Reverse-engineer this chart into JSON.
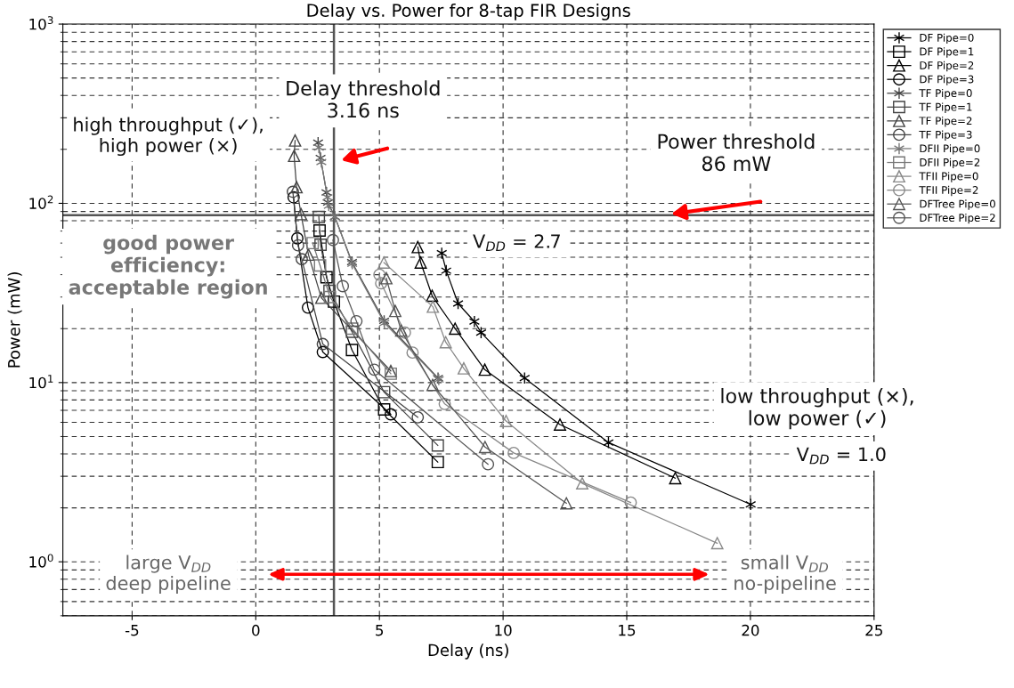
{
  "chart_data": {
    "type": "line",
    "title": "Delay vs. Power for 8-tap FIR Designs",
    "xlabel": "Delay (ns)",
    "ylabel": "Power (mW)",
    "log": "y",
    "xlim": [
      -7.8,
      25
    ],
    "xticks": [
      -5,
      0,
      5,
      10,
      15,
      20,
      25
    ],
    "ylim": [
      0.5,
      1000
    ],
    "yticks": [
      {
        "value": 1,
        "label": "10$^{0}$"
      },
      {
        "value": 10,
        "label": "10$^{1}$"
      },
      {
        "value": 100,
        "label": "10$^{2}$"
      },
      {
        "value": 1000,
        "label": "10$^{3}$"
      }
    ],
    "grid": true,
    "legend": "right",
    "line_style": "solid",
    "ref_lines": [
      {
        "axis": "x",
        "value": 3.16,
        "color": "#555555"
      },
      {
        "axis": "y",
        "value": 86,
        "color": "#555555"
      }
    ],
    "annotations": [
      {
        "text": "Delay threshold\n3.16 ns",
        "x": 3.16,
        "y": 170
      },
      {
        "text": "Power threshold\n86 mW",
        "x": 16.5,
        "y": 86
      },
      "high throughput (✓),\nhigh power (×)",
      "good power\nefficiency:\nacceptable region",
      "V$_{DD}$ = 2.7",
      "V$_{DD}$ = 1.0",
      "low throughput (×),\nlow power (✓)",
      "large V$_{DD}$\ndeep pipeline",
      "small V$_{DD}$\nno-pipeline"
    ],
    "series": [
      {
        "name": "DF Pipe=0",
        "color": "#000000",
        "marker": "cross",
        "x": [
          7.52,
          7.7,
          8.18,
          8.84,
          9.11,
          10.87,
          14.26,
          20.01
        ],
        "values": [
          52.7,
          42.1,
          27.6,
          21.9,
          19.0,
          10.6,
          4.63,
          2.09
        ]
      },
      {
        "name": "DF Pipe=1",
        "color": "#000000",
        "marker": "square",
        "x": [
          2.58,
          2.86,
          3.16,
          3.89,
          5.19,
          7.36
        ],
        "values": [
          70.5,
          38.7,
          28.3,
          15.2,
          7.08,
          3.6
        ]
      },
      {
        "name": "DF Pipe=2",
        "color": "#000000",
        "marker": "triangle",
        "x": [
          6.55,
          6.67,
          7.13,
          8.06,
          9.26,
          12.3,
          16.96
        ],
        "values": [
          57,
          46.7,
          30.5,
          20,
          11.8,
          5.83,
          2.93
        ]
      },
      {
        "name": "DF Pipe=3",
        "color": "#000000",
        "marker": "circle",
        "x": [
          1.53,
          1.68,
          2.11,
          2.71,
          5.46
        ],
        "values": [
          108,
          63.8,
          26.2,
          14.8,
          6.65
        ]
      },
      {
        "name": "TF Pipe=0",
        "color": "#444444",
        "marker": "cross",
        "x": [
          2.52,
          2.62,
          2.86,
          2.92,
          3.2,
          3.89,
          5.19,
          7.37
        ],
        "values": [
          218,
          179,
          115,
          101,
          84,
          47,
          22.1,
          10.6
        ]
      },
      {
        "name": "TF Pipe=1",
        "color": "#444444",
        "marker": "square",
        "x": [
          2.55,
          2.62,
          2.98,
          3.89,
          5.19,
          7.36
        ],
        "values": [
          84,
          58.7,
          32.5,
          19.2,
          8.84,
          4.46
        ]
      },
      {
        "name": "TF Pipe=2",
        "color": "#444444",
        "marker": "triangle",
        "x": [
          1.59,
          1.55,
          1.65,
          1.83,
          2.13,
          2.65,
          5.46
        ],
        "values": [
          224,
          184,
          123,
          87,
          51.7,
          29.7,
          11.6
        ]
      },
      {
        "name": "TF Pipe=3",
        "color": "#444444",
        "marker": "circle",
        "x": [
          1.5,
          1.71,
          1.86,
          2.71,
          6.55
        ],
        "values": [
          116,
          58.3,
          48.8,
          16.4,
          6.4
        ]
      },
      {
        "name": "DFII Pipe=0",
        "color": "#777777",
        "marker": "cross",
        "x": [
          2.55,
          2.65,
          2.9,
          2.95,
          3.2,
          3.9,
          5.2,
          7.4
        ],
        "values": [
          205,
          170,
          108,
          97,
          84,
          46,
          21.5,
          10.4
        ]
      },
      {
        "name": "DFII Pipe=2",
        "color": "#777777",
        "marker": "square",
        "x": [
          2.3,
          2.6,
          3.0,
          3.9,
          5.46
        ],
        "values": [
          60,
          45,
          30,
          20,
          11.2
        ]
      },
      {
        "name": "TFII Pipe=0",
        "color": "#888888",
        "marker": "triangle",
        "x": [
          5.18,
          7.16,
          7.68,
          8.41,
          10.12,
          13.2,
          18.66
        ],
        "values": [
          46.7,
          26.5,
          16.8,
          12.0,
          6.1,
          2.74,
          1.27
        ]
      },
      {
        "name": "TFII Pipe=2",
        "color": "#888888",
        "marker": "circle",
        "x": [
          5.0,
          5.07,
          6.03,
          6.34,
          7.64,
          10.43,
          15.16
        ],
        "values": [
          40,
          35.8,
          19,
          14.7,
          7.6,
          4.05,
          2.14
        ]
      },
      {
        "name": "DFTree Pipe=0",
        "color": "#555555",
        "marker": "triangle",
        "x": [
          5.28,
          5.64,
          5.88,
          7.15,
          9.27,
          12.56
        ],
        "values": [
          38.2,
          25.1,
          19.5,
          9.7,
          4.37,
          2.12
        ]
      },
      {
        "name": "DFTree Pipe=2",
        "color": "#555555",
        "marker": "circle",
        "x": [
          3.12,
          3.52,
          4.07,
          4.79,
          9.39
        ],
        "values": [
          62.4,
          34.5,
          22,
          11.8,
          3.5
        ]
      }
    ]
  }
}
